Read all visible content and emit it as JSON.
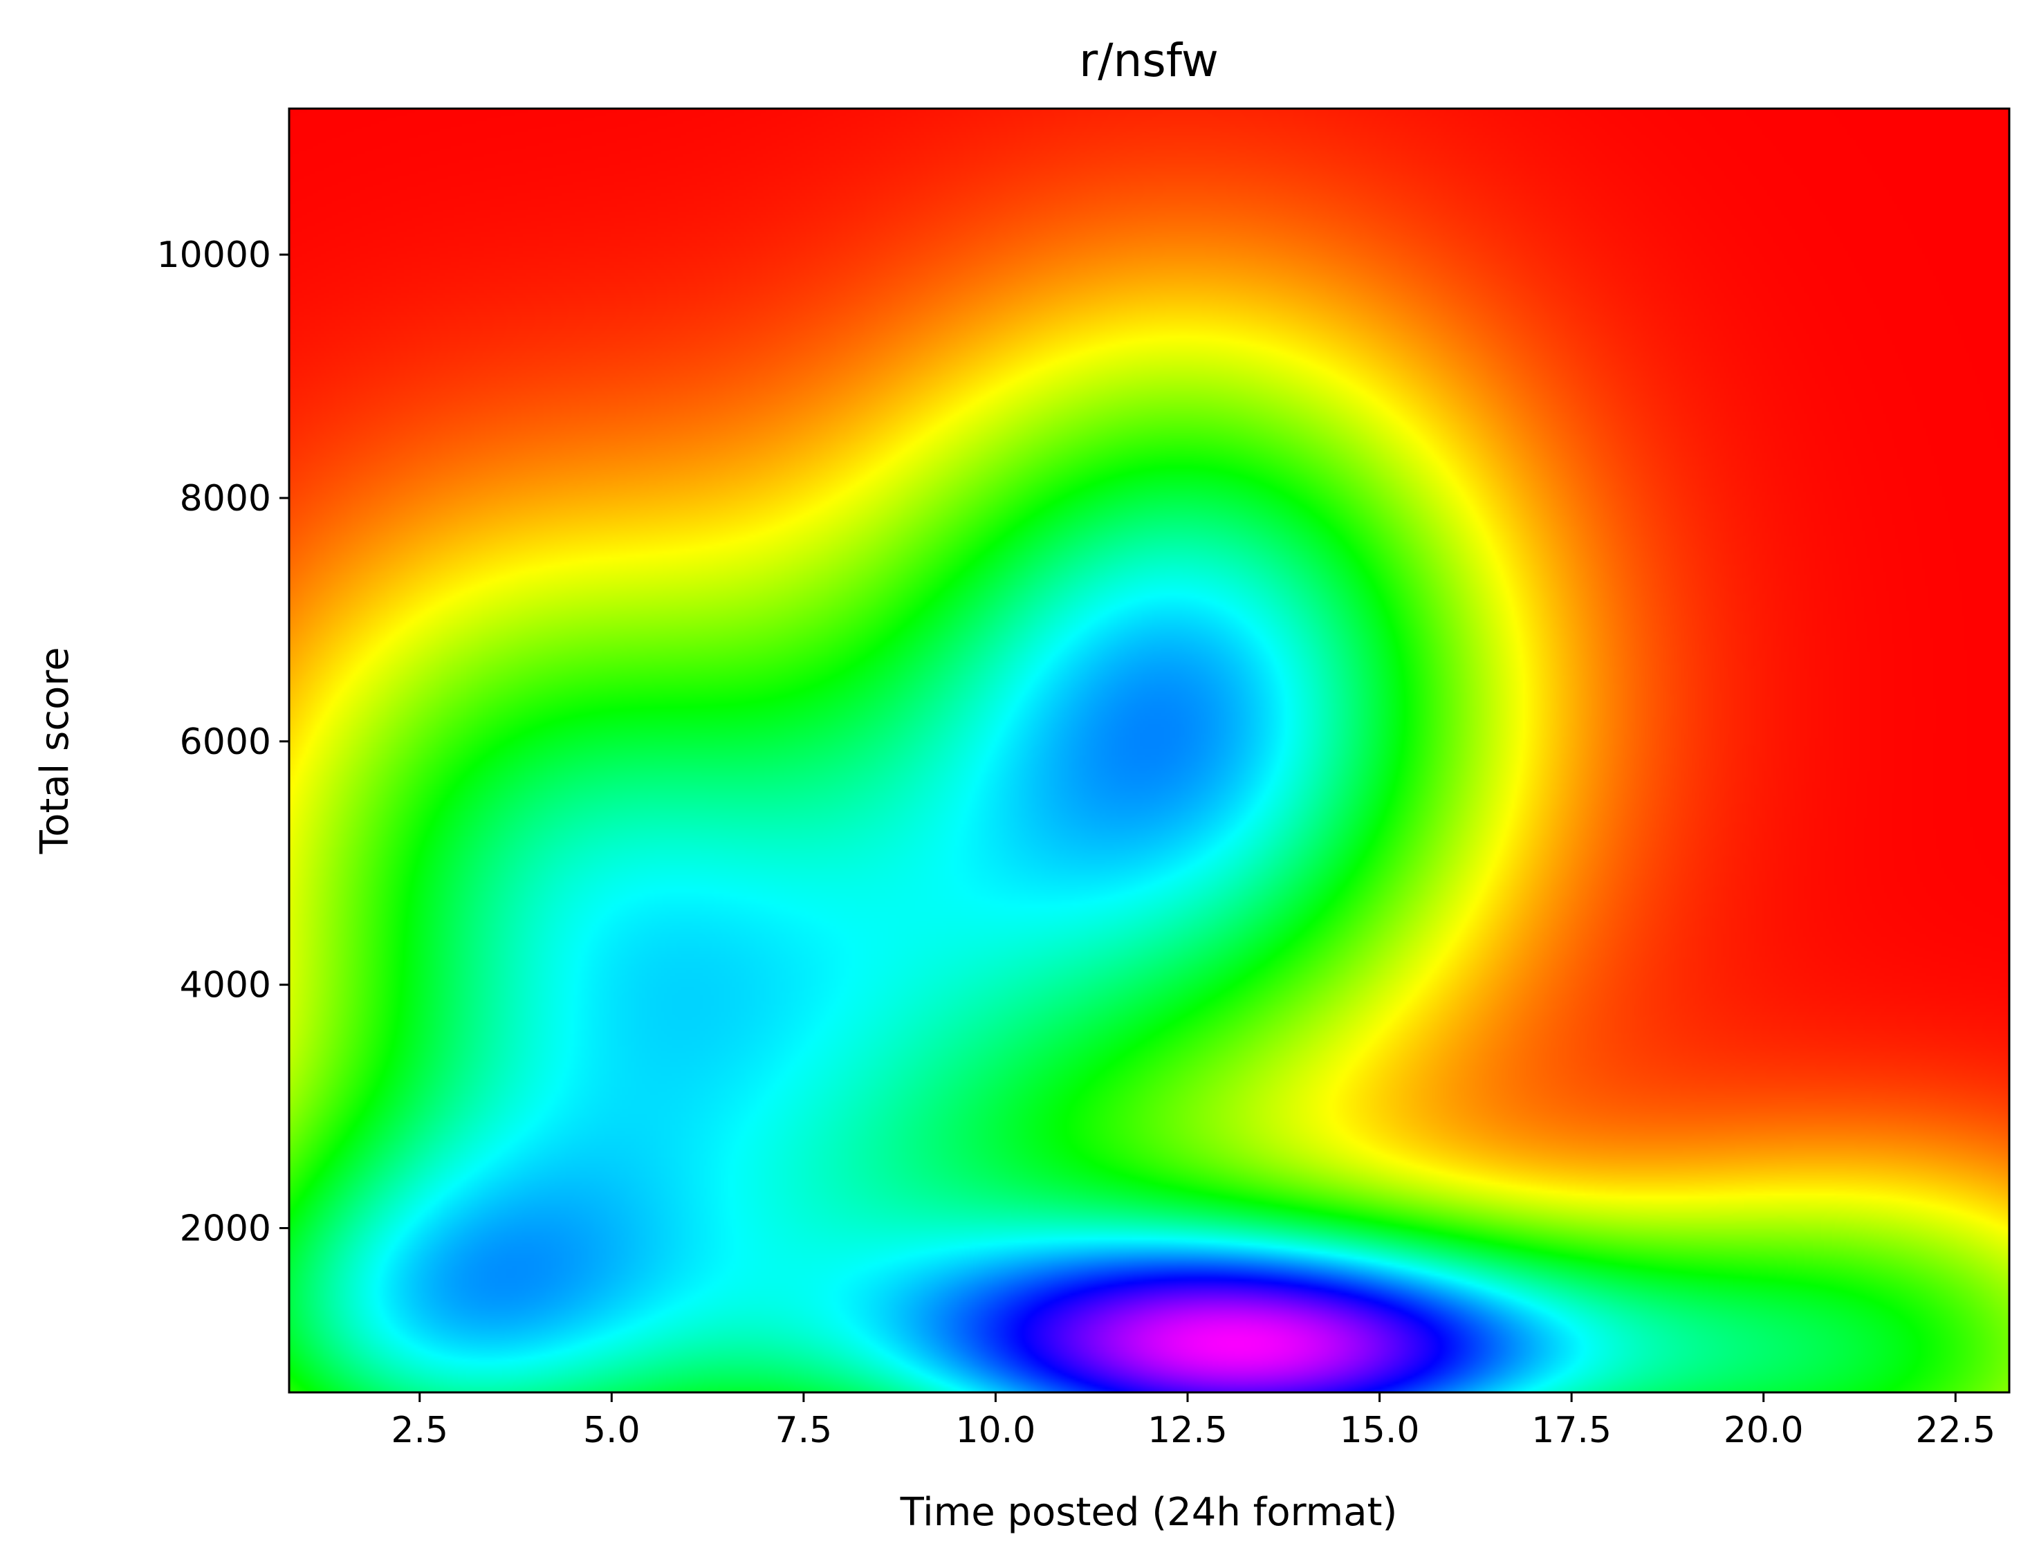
{
  "chart_data": {
    "type": "heatmap",
    "title": "r/nsfw",
    "xlabel": "Time posted (24h format)",
    "ylabel": "Total score",
    "xlim": [
      0.8,
      23.2
    ],
    "ylim": [
      650,
      11200
    ],
    "x_ticks": [
      2.5,
      5.0,
      7.5,
      10.0,
      12.5,
      15.0,
      17.5,
      20.0,
      22.5
    ],
    "x_tick_labels": [
      "2.5",
      "5.0",
      "7.5",
      "10.0",
      "12.5",
      "15.0",
      "17.5",
      "20.0",
      "22.5"
    ],
    "y_ticks": [
      2000,
      4000,
      6000,
      8000,
      10000
    ],
    "y_tick_labels": [
      "2000",
      "4000",
      "6000",
      "8000",
      "10000"
    ],
    "colormap": "gist_rainbow",
    "grid": false,
    "legend": "none",
    "density_peaks": [
      {
        "x": 13.5,
        "y": 1000,
        "weight": 1.0,
        "sx": 3.6,
        "sy": 800
      },
      {
        "x": 12.5,
        "y": 6300,
        "weight": 0.78,
        "sx": 3.2,
        "sy": 2200
      },
      {
        "x": 4.0,
        "y": 4800,
        "weight": 0.55,
        "sx": 3.0,
        "sy": 2200
      },
      {
        "x": 2.5,
        "y": 1200,
        "weight": 0.58,
        "sx": 2.8,
        "sy": 1200
      },
      {
        "x": 21.5,
        "y": 1000,
        "weight": 0.48,
        "sx": 3.0,
        "sy": 1200
      },
      {
        "x": 8.0,
        "y": 3000,
        "weight": 0.4,
        "sx": 3.0,
        "sy": 2000
      }
    ]
  }
}
